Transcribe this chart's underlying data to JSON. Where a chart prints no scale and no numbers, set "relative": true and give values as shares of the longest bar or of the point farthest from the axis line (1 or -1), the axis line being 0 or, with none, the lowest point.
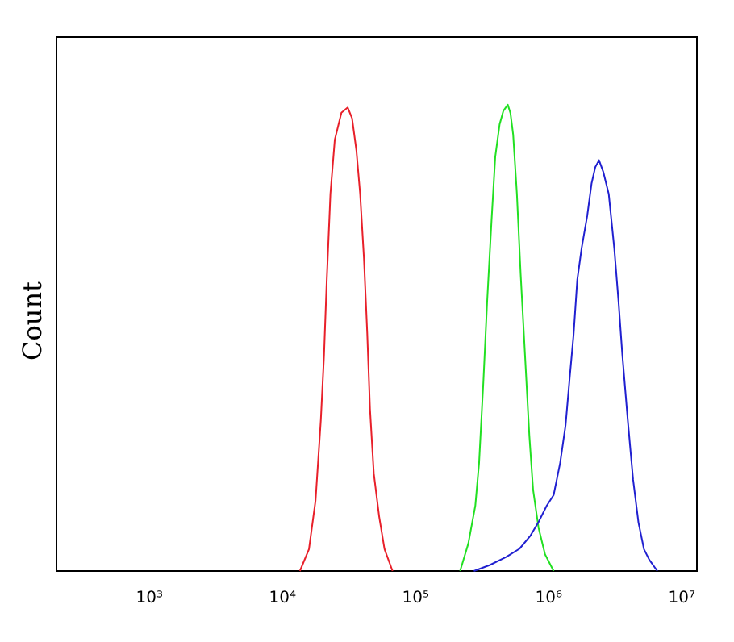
{
  "chart_data": {
    "type": "line",
    "ylabel": "Count",
    "relative": true,
    "log": "x",
    "xlim": [
      200,
      13000000
    ],
    "xticks": [
      {
        "value": 1000,
        "label": "10³"
      },
      {
        "value": 10000,
        "label": "10⁴"
      },
      {
        "value": 100000,
        "label": "10⁵"
      },
      {
        "value": 1000000,
        "label": "10⁶"
      },
      {
        "value": 10000000,
        "label": "10⁷"
      }
    ],
    "series": [
      {
        "color": "#e8202a",
        "x": [
          13500,
          15800,
          17700,
          19400,
          20500,
          21500,
          22900,
          24700,
          27700,
          30900,
          33300,
          35900,
          38300,
          40900,
          43300,
          45400,
          48500,
          53200,
          58400,
          67100
        ],
        "values": [
          0,
          0.047,
          0.151,
          0.324,
          0.463,
          0.625,
          0.809,
          0.925,
          0.983,
          0.994,
          0.971,
          0.902,
          0.809,
          0.671,
          0.51,
          0.348,
          0.209,
          0.117,
          0.047,
          0
        ]
      },
      {
        "color": "#22e022",
        "x": [
          216000,
          249000,
          281000,
          300000,
          323000,
          345000,
          372000,
          397000,
          428000,
          457000,
          493000,
          516000,
          541000,
          577000,
          616000,
          664000,
          716000,
          764000,
          839000,
          939000,
          1090000
        ],
        "values": [
          0,
          0.059,
          0.14,
          0.232,
          0.405,
          0.578,
          0.751,
          0.889,
          0.958,
          0.987,
          1,
          0.982,
          0.936,
          0.809,
          0.636,
          0.463,
          0.29,
          0.174,
          0.093,
          0.036,
          0
        ]
      },
      {
        "color": "#2020d0",
        "x": [
          274000,
          362000,
          479000,
          605000,
          730000,
          839000,
          967000,
          1090000,
          1220000,
          1340000,
          1440000,
          1540000,
          1640000,
          1770000,
          1950000,
          2100000,
          2240000,
          2390000,
          2580000,
          2830000,
          3110000,
          3350000,
          3580000,
          3930000,
          4310000,
          4730000,
          5200000,
          5710000,
          6560000
        ],
        "values": [
          0,
          0.013,
          0.03,
          0.048,
          0.076,
          0.105,
          0.14,
          0.163,
          0.232,
          0.313,
          0.416,
          0.508,
          0.624,
          0.693,
          0.762,
          0.831,
          0.866,
          0.881,
          0.855,
          0.808,
          0.693,
          0.578,
          0.463,
          0.324,
          0.196,
          0.104,
          0.047,
          0.024,
          0
        ]
      }
    ]
  }
}
